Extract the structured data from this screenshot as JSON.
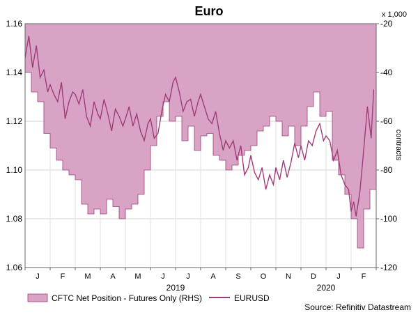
{
  "chart_data": {
    "type": "area",
    "title": "Euro",
    "x_months": [
      "J",
      "F",
      "M",
      "A",
      "M",
      "J",
      "J",
      "A",
      "S",
      "O",
      "N",
      "D",
      "J",
      "F"
    ],
    "year_labels": [
      "2019",
      "2020"
    ],
    "left_axis": {
      "ticks": [
        "1.06",
        "1.08",
        "1.10",
        "1.12",
        "1.14",
        "1.16"
      ],
      "ylim": [
        1.06,
        1.16
      ]
    },
    "right_axis": {
      "ticks": [
        "-20",
        "-40",
        "-60",
        "-80",
        "-100",
        "-120"
      ],
      "ylim": [
        -120,
        -20
      ],
      "label": "contracts",
      "multiplier": "x 1,000"
    },
    "series": [
      {
        "name": "CFTC Net Position - Futures Only (RHS)",
        "axis": "right",
        "color": "#D9A3C5",
        "stroke": "#9E3C79",
        "x": [
          0,
          0.25,
          0.5,
          0.75,
          1,
          1.25,
          1.5,
          1.75,
          2,
          2.25,
          2.5,
          2.75,
          3,
          3.25,
          3.5,
          3.75,
          4,
          4.25,
          4.5,
          4.75,
          5,
          5.25,
          5.5,
          5.75,
          6,
          6.25,
          6.5,
          6.75,
          7,
          7.25,
          7.5,
          7.75,
          8,
          8.25,
          8.5,
          8.75,
          9,
          9.25,
          9.5,
          9.75,
          10,
          10.25,
          10.5,
          10.75,
          11,
          11.25,
          11.5,
          11.75,
          12,
          12.25,
          12.5,
          12.75,
          13,
          13.25,
          13.5,
          13.75
        ],
        "values": [
          -40,
          -48,
          -52,
          -65,
          -71,
          -76,
          -80,
          -82,
          -84,
          -94,
          -98,
          -96,
          -98,
          -92,
          -95,
          -100,
          -96,
          -94,
          -90,
          -80,
          -70,
          -58,
          -52,
          -60,
          -58,
          -68,
          -62,
          -72,
          -66,
          -65,
          -74,
          -76,
          -80,
          -78,
          -74,
          -72,
          -70,
          -64,
          -62,
          -58,
          -60,
          -66,
          -62,
          -70,
          -62,
          -54,
          -48,
          -58,
          -56,
          -76,
          -82,
          -90,
          -100,
          -112,
          -96,
          -88
        ]
      },
      {
        "name": "EURUSD",
        "axis": "left",
        "color": "#9E3C79",
        "x": [
          0,
          0.15,
          0.3,
          0.45,
          0.6,
          0.75,
          0.9,
          1,
          1.15,
          1.3,
          1.45,
          1.6,
          1.75,
          1.9,
          2,
          2.15,
          2.3,
          2.45,
          2.6,
          2.75,
          2.9,
          3,
          3.15,
          3.3,
          3.45,
          3.6,
          3.75,
          3.9,
          4,
          4.15,
          4.3,
          4.45,
          4.6,
          4.75,
          4.9,
          5,
          5.15,
          5.3,
          5.45,
          5.6,
          5.75,
          5.9,
          6,
          6.15,
          6.3,
          6.45,
          6.6,
          6.75,
          6.9,
          7,
          7.15,
          7.3,
          7.45,
          7.6,
          7.75,
          7.9,
          8,
          8.15,
          8.3,
          8.45,
          8.6,
          8.75,
          8.9,
          9,
          9.15,
          9.3,
          9.45,
          9.6,
          9.75,
          9.9,
          10,
          10.15,
          10.3,
          10.45,
          10.6,
          10.75,
          10.9,
          11,
          11.15,
          11.3,
          11.45,
          11.6,
          11.75,
          11.9,
          12,
          12.15,
          12.3,
          12.45,
          12.6,
          12.75,
          12.9,
          13,
          13.1,
          13.2,
          13.35,
          13.5,
          13.65,
          13.8,
          13.9
        ],
        "values": [
          1.146,
          1.155,
          1.142,
          1.151,
          1.138,
          1.141,
          1.132,
          1.135,
          1.131,
          1.128,
          1.136,
          1.121,
          1.128,
          1.132,
          1.131,
          1.127,
          1.133,
          1.122,
          1.118,
          1.128,
          1.123,
          1.121,
          1.129,
          1.123,
          1.116,
          1.125,
          1.122,
          1.118,
          1.121,
          1.126,
          1.118,
          1.123,
          1.116,
          1.112,
          1.119,
          1.121,
          1.113,
          1.115,
          1.124,
          1.131,
          1.128,
          1.136,
          1.138,
          1.132,
          1.124,
          1.128,
          1.129,
          1.122,
          1.128,
          1.131,
          1.126,
          1.121,
          1.119,
          1.124,
          1.115,
          1.108,
          1.112,
          1.109,
          1.112,
          1.104,
          1.11,
          1.098,
          1.101,
          1.106,
          1.099,
          1.096,
          1.101,
          1.092,
          1.098,
          1.094,
          1.101,
          1.096,
          1.104,
          1.097,
          1.103,
          1.111,
          1.105,
          1.11,
          1.104,
          1.112,
          1.11,
          1.116,
          1.119,
          1.112,
          1.114,
          1.112,
          1.104,
          1.108,
          1.098,
          1.094,
          1.092,
          1.083,
          1.087,
          1.081,
          1.091,
          1.108,
          1.126,
          1.113,
          1.133
        ]
      }
    ],
    "grid": true,
    "legend_position": "bottom-left",
    "source": "Source: Refinitiv Datastream"
  }
}
